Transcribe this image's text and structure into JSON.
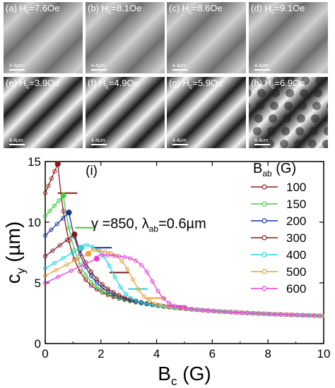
{
  "panels": [
    {
      "id": "a",
      "label": "(a) H",
      "sub": "c",
      "value": "=7.6Oe",
      "scale": "4.4µm",
      "stripes": "faint"
    },
    {
      "id": "b",
      "label": "(b) H",
      "sub": "c",
      "value": "=8.1Oe",
      "scale": "4.4µm",
      "stripes": "faint"
    },
    {
      "id": "c",
      "label": "(c) H",
      "sub": "c",
      "value": "=8.6Oe",
      "scale": "4.4µm",
      "stripes": "faint"
    },
    {
      "id": "d",
      "label": "(d) H",
      "sub": "c",
      "value": "=9.1Oe",
      "scale": "4.4µm",
      "stripes": "faint"
    },
    {
      "id": "e",
      "label": "(e) H",
      "sub": "c",
      "value": "=3.9Oe",
      "scale": "4.4µm",
      "stripes": "strong"
    },
    {
      "id": "f",
      "label": "(f) H",
      "sub": "c",
      "value": "=4.9Oe",
      "scale": "4.4µm",
      "stripes": "strong"
    },
    {
      "id": "g",
      "label": "(g) H",
      "sub": "c",
      "value": "=5.9Oe",
      "scale": "4.4µm",
      "stripes": "strong"
    },
    {
      "id": "h",
      "label": "(h) H",
      "sub": "c",
      "value": "=6.9Oe",
      "scale": "4.4µm",
      "stripes": "chain"
    }
  ],
  "chart_data": {
    "type": "line",
    "panel_label": "(i)",
    "annotation": "γ =850, λ",
    "annotation_sub": "ab",
    "annotation_end": "=0.6µm",
    "xlabel": "B",
    "xlabel_sub": "c",
    "xlabel_unit": " (G)",
    "ylabel": "c",
    "ylabel_sub": "y",
    "ylabel_unit": " (µm)",
    "xlim": [
      0,
      10
    ],
    "ylim": [
      0,
      15
    ],
    "xticks": [
      0,
      2,
      4,
      6,
      8,
      10
    ],
    "yticks": [
      0,
      5,
      10,
      15
    ],
    "legend_title": "B",
    "legend_title_sub": "ab",
    "legend_title_unit": " (G)",
    "legend_position": "right",
    "series": [
      {
        "name": "100",
        "color": "#8b1a1a",
        "peak": [
          0.45,
          14.8
        ],
        "start": [
          0.0,
          12.4
        ]
      },
      {
        "name": "150",
        "color": "#3ecf3e",
        "peak": [
          0.65,
          12.2
        ],
        "start": [
          0.0,
          10.5
        ]
      },
      {
        "name": "200",
        "color": "#1a2f9e",
        "peak": [
          0.85,
          10.8
        ],
        "start": [
          0.0,
          8.9
        ]
      },
      {
        "name": "300",
        "color": "#7a1c1c",
        "peak": [
          1.05,
          9.0
        ],
        "start": [
          0.0,
          7.2
        ]
      },
      {
        "name": "400",
        "color": "#1fd6de",
        "peak": [
          1.3,
          7.9
        ],
        "start": [
          0.0,
          6.2
        ]
      },
      {
        "name": "500",
        "color": "#e6a23c",
        "peak": [
          1.55,
          7.4
        ],
        "start": [
          0.0,
          5.6
        ]
      },
      {
        "name": "600",
        "color": "#e63ed6",
        "peak": [
          1.85,
          7.0
        ],
        "start": [
          0.0,
          5.0
        ]
      }
    ]
  }
}
